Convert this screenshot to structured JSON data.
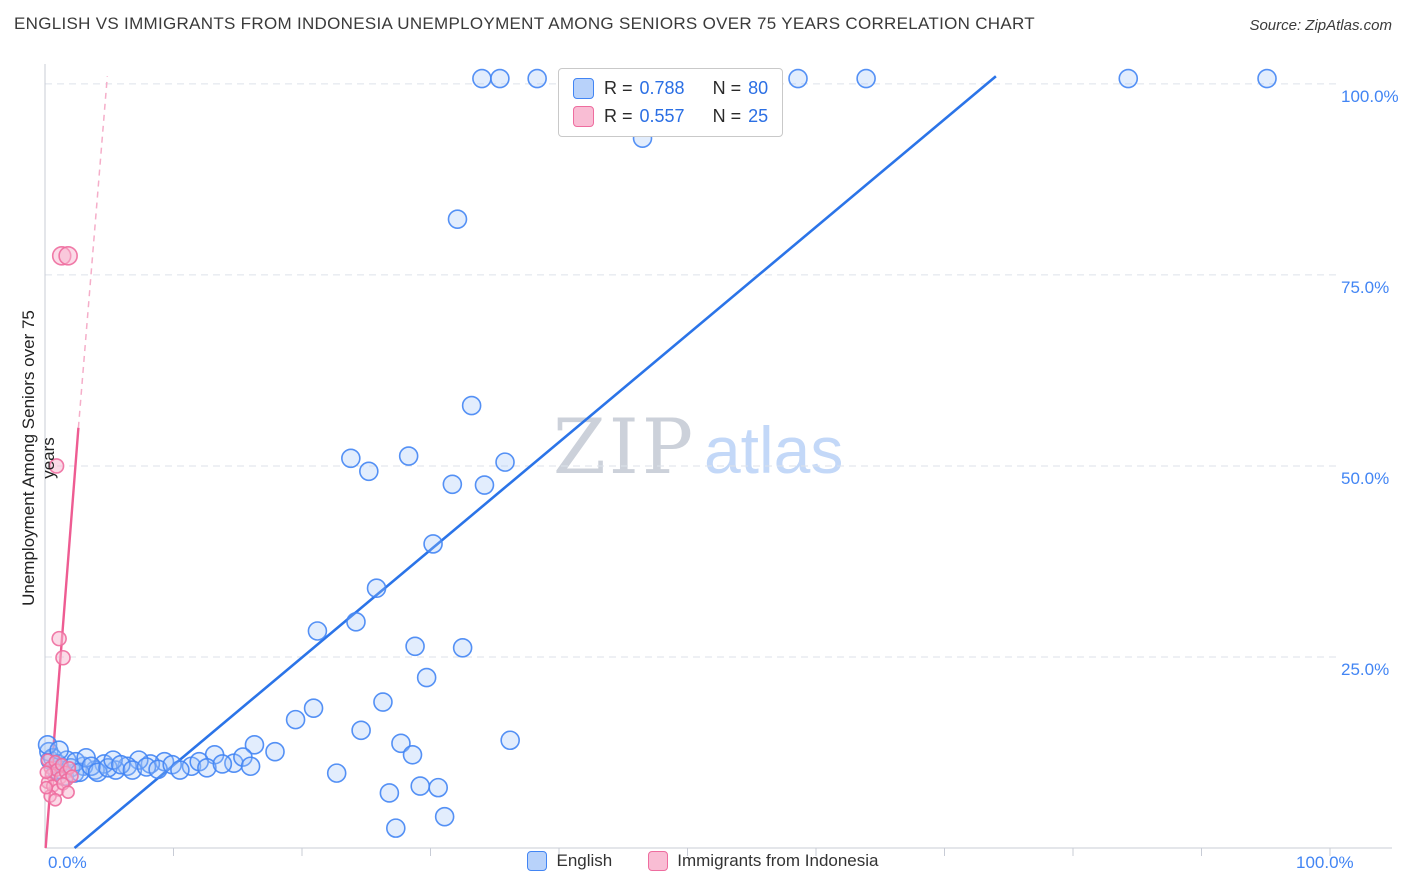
{
  "title": "ENGLISH VS IMMIGRANTS FROM INDONESIA UNEMPLOYMENT AMONG SENIORS OVER 75 YEARS CORRELATION CHART",
  "source": "Source: ZipAtlas.com",
  "watermark": {
    "part1": "ZIP",
    "part2": "atlas"
  },
  "legend_box": {
    "rows": [
      {
        "r_label": "R =",
        "r_value": "0.788",
        "n_label": "N =",
        "n_value": "80"
      },
      {
        "r_label": "R =",
        "r_value": "0.557",
        "n_label": "N =",
        "n_value": "25"
      }
    ]
  },
  "chart_data": {
    "type": "scatter",
    "title": "ENGLISH VS IMMIGRANTS FROM INDONESIA UNEMPLOYMENT AMONG SENIORS OVER 75 YEARS CORRELATION CHART",
    "xlabel": "",
    "ylabel": "Unemployment Among Seniors over 75 years",
    "xlim": [
      0,
      105
    ],
    "ylim": [
      0,
      103
    ],
    "grid": "dashed-horizontal",
    "legend_position": "top-center and bottom-center",
    "x_tick_labels": [
      "0.0%",
      "100.0%"
    ],
    "y_tick_labels": [
      "100.0%",
      "75.0%",
      "50.0%",
      "25.0%"
    ],
    "grid_y": [
      100,
      75,
      50,
      25
    ],
    "series": [
      {
        "name": "English",
        "R": 0.788,
        "N": 80,
        "color": "#4285f4",
        "fill": "#9ec2f8",
        "fill_opacity": 0.3,
        "legend_fill": "#b8d2fa",
        "radius": 9,
        "points": [
          [
            34.0,
            100.7
          ],
          [
            35.4,
            100.7
          ],
          [
            38.3,
            100.7
          ],
          [
            46.3,
            100.7
          ],
          [
            58.6,
            100.7
          ],
          [
            63.9,
            100.7
          ],
          [
            84.3,
            100.7
          ],
          [
            95.1,
            100.7
          ],
          [
            46.5,
            92.9
          ],
          [
            32.1,
            82.3
          ],
          [
            33.2,
            57.9
          ],
          [
            23.8,
            51.0
          ],
          [
            28.3,
            51.3
          ],
          [
            25.2,
            49.3
          ],
          [
            31.7,
            47.6
          ],
          [
            34.2,
            47.5
          ],
          [
            35.8,
            50.5
          ],
          [
            30.2,
            39.8
          ],
          [
            25.8,
            34.0
          ],
          [
            24.2,
            29.6
          ],
          [
            28.8,
            26.4
          ],
          [
            32.5,
            26.2
          ],
          [
            29.7,
            22.3
          ],
          [
            21.2,
            28.4
          ],
          [
            26.3,
            19.1
          ],
          [
            20.9,
            18.3
          ],
          [
            19.5,
            16.8
          ],
          [
            24.6,
            15.4
          ],
          [
            27.7,
            13.7
          ],
          [
            36.2,
            14.1
          ],
          [
            16.3,
            13.5
          ],
          [
            17.9,
            12.6
          ],
          [
            22.7,
            9.8
          ],
          [
            26.8,
            7.2
          ],
          [
            29.2,
            8.1
          ],
          [
            30.6,
            7.9
          ],
          [
            31.1,
            4.1
          ],
          [
            27.3,
            2.6
          ],
          [
            28.6,
            12.2
          ],
          [
            14.7,
            11.1
          ],
          [
            13.2,
            12.2
          ],
          [
            11.4,
            10.7
          ],
          [
            9.3,
            11.3
          ],
          [
            8.2,
            11.0
          ],
          [
            7.3,
            11.5
          ],
          [
            6.4,
            10.7
          ],
          [
            5.5,
            10.2
          ],
          [
            4.6,
            11.0
          ],
          [
            3.9,
            10.2
          ],
          [
            3.0,
            10.7
          ],
          [
            2.3,
            9.8
          ],
          [
            1.5,
            9.4
          ],
          [
            0.9,
            10.2
          ],
          [
            0.4,
            11.5
          ],
          [
            0.3,
            12.6
          ],
          [
            0.6,
            11.8
          ],
          [
            1.0,
            11.0
          ],
          [
            1.3,
            10.2
          ],
          [
            1.7,
            11.5
          ],
          [
            2.0,
            10.5
          ],
          [
            2.4,
            11.3
          ],
          [
            2.7,
            9.9
          ],
          [
            3.2,
            11.8
          ],
          [
            3.6,
            10.7
          ],
          [
            4.1,
            9.9
          ],
          [
            4.9,
            10.5
          ],
          [
            5.3,
            11.5
          ],
          [
            5.9,
            10.9
          ],
          [
            6.8,
            10.2
          ],
          [
            7.9,
            10.6
          ],
          [
            8.8,
            10.3
          ],
          [
            9.9,
            10.9
          ],
          [
            10.5,
            10.2
          ],
          [
            12.0,
            11.3
          ],
          [
            12.6,
            10.5
          ],
          [
            13.8,
            11.0
          ],
          [
            15.4,
            11.9
          ],
          [
            16.0,
            10.7
          ],
          [
            0.2,
            13.5
          ],
          [
            1.1,
            12.8
          ]
        ]
      },
      {
        "name": "Immigrants from Indonesia",
        "R": 0.557,
        "N": 25,
        "color": "#ee6d9f",
        "fill": "#f7b6cf",
        "fill_opacity": 0.5,
        "legend_fill": "#f9bdd4",
        "radius": 6,
        "points": [
          [
            1.3,
            77.5,
            9
          ],
          [
            1.8,
            77.5,
            9
          ],
          [
            0.9,
            50.0,
            7
          ],
          [
            1.1,
            27.4,
            7
          ],
          [
            1.4,
            24.9,
            7
          ],
          [
            0.2,
            11.5
          ],
          [
            0.4,
            10.5
          ],
          [
            0.5,
            9.6
          ],
          [
            0.8,
            11.3
          ],
          [
            0.9,
            10.2
          ],
          [
            1.2,
            9.2
          ],
          [
            1.3,
            10.9
          ],
          [
            1.6,
            9.9
          ],
          [
            1.7,
            8.9
          ],
          [
            1.9,
            10.5
          ],
          [
            2.1,
            9.4
          ],
          [
            0.2,
            8.6
          ],
          [
            0.6,
            8.1
          ],
          [
            1.0,
            7.6
          ],
          [
            1.4,
            8.4
          ],
          [
            1.8,
            7.3
          ],
          [
            0.4,
            6.8
          ],
          [
            0.8,
            6.3
          ],
          [
            0.1,
            9.9
          ],
          [
            0.1,
            7.9
          ]
        ]
      }
    ],
    "trend_lines": [
      {
        "name": "indonesia-trend-line-extension",
        "x1": 2.6,
        "y1": 55,
        "x2": 4.85,
        "y2": 101,
        "color": "#f5aec9",
        "width": 1.5,
        "dash": "6 5"
      },
      {
        "name": "indonesia-trend-line",
        "x1": 0.05,
        "y1": 0,
        "x2": 2.6,
        "y2": 55,
        "color": "#ee5c92",
        "width": 2.4
      },
      {
        "name": "english-trend-line",
        "x1": 2.3,
        "y1": 0,
        "x2": 74,
        "y2": 101,
        "color": "#2b74e8",
        "width": 2.6
      }
    ]
  }
}
